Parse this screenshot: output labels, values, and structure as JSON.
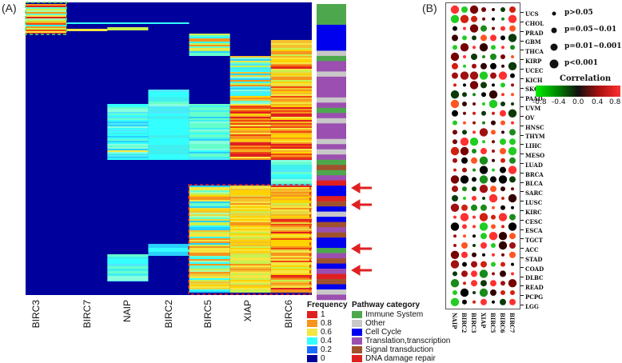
{
  "panelA": {
    "label": "(A)",
    "genes": [
      "BIRC3",
      "BIRC7",
      "NAIP",
      "BIRC2",
      "BIRC5",
      "XIAP",
      "BIRC6"
    ],
    "frequency_legend": {
      "title": "Frequency",
      "levels": [
        {
          "label": "1",
          "color": "#e02020"
        },
        {
          "label": "0.8",
          "color": "#f7941d"
        },
        {
          "label": "0.6",
          "color": "#f5e642"
        },
        {
          "label": "0.4",
          "color": "#33ffff"
        },
        {
          "label": "0.2",
          "color": "#1a6dff"
        },
        {
          "label": "0",
          "color": "#00009a"
        }
      ]
    },
    "pathway_legend": {
      "title": "Pathway category",
      "items": [
        {
          "label": "Immune System",
          "color": "#4da84d"
        },
        {
          "label": "Other",
          "color": "#c8c8c8"
        },
        {
          "label": "Cell Cycle",
          "color": "#0000ee"
        },
        {
          "label": "Translation,transcription",
          "color": "#9b4fb0"
        },
        {
          "label": "Signal transduction",
          "color": "#a0522d"
        },
        {
          "label": "DNA damage repair",
          "color": "#e02020"
        }
      ]
    }
  },
  "panelB": {
    "label": "(B)",
    "cancers": [
      "UCS",
      "CHOL",
      "PRAD",
      "GBM",
      "THCA",
      "KIRP",
      "UCEC",
      "KICH",
      "SKCM",
      "PAAD",
      "UVM",
      "OV",
      "HNSC",
      "THYM",
      "LIHC",
      "MESO",
      "LUAD",
      "BRCA",
      "BLCA",
      "SARC",
      "LUSC",
      "KIRC",
      "CESC",
      "ESCA",
      "TGCT",
      "ACC",
      "STAD",
      "COAD",
      "DLBC",
      "READ",
      "PCPG",
      "LGG"
    ],
    "genes": [
      "NAIP",
      "BIRC2",
      "BIRC3",
      "XIAP",
      "BIRC5",
      "BIRC6",
      "BIRC7"
    ],
    "significance_legend": [
      "p>0.05",
      "p=0.05~0.01",
      "p=0.01~0.001",
      "p<0.001"
    ],
    "correlation_legend": {
      "title": "Correlation",
      "ticks": [
        "-0.8",
        "-0.4",
        "0.0",
        "0.4",
        "0.8"
      ]
    }
  }
}
